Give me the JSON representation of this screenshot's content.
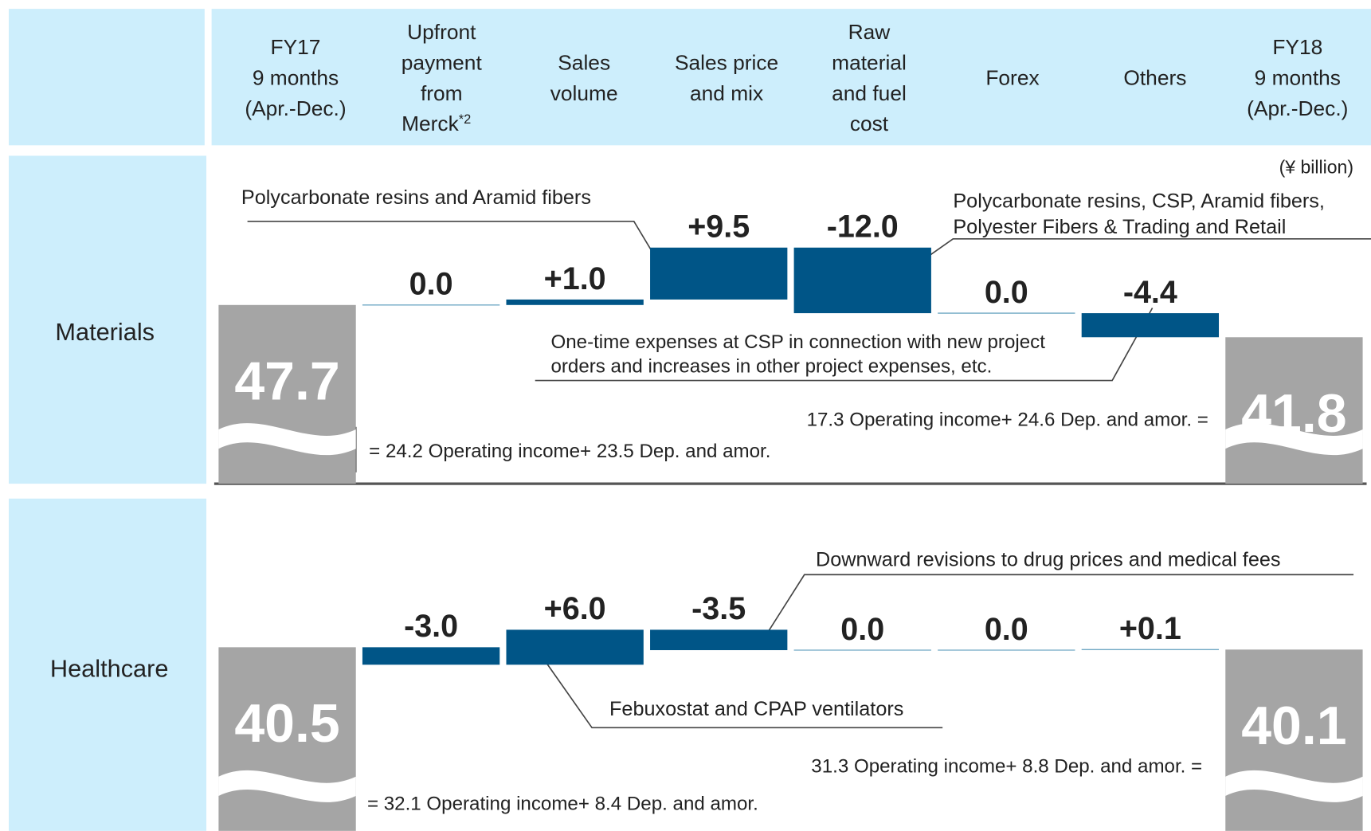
{
  "unit": "(¥ billion)",
  "columns": [
    [
      "FY17",
      "9 months",
      "(Apr.-Dec.)"
    ],
    [
      "Upfront",
      "payment",
      "from",
      "Merck"
    ],
    [
      "Sales",
      "volume"
    ],
    [
      "Sales price",
      "and mix"
    ],
    [
      "Raw",
      "material",
      "and fuel",
      "cost"
    ],
    [
      "Forex"
    ],
    [
      "Others"
    ],
    [
      "FY18",
      "9 months",
      "(Apr.-Dec.)"
    ]
  ],
  "footnote_mark": "*2",
  "chart_data": [
    {
      "type": "waterfall",
      "title": "Materials",
      "values": [
        47.7,
        0.0,
        1.0,
        9.5,
        -12.0,
        0.0,
        -4.4,
        41.8
      ],
      "value_labels": [
        "47.7",
        "0.0",
        "+1.0",
        "+9.5",
        "-12.0",
        "0.0",
        "-4.4",
        "41.8"
      ],
      "ylim": [
        15,
        75
      ],
      "annotations": [
        [
          "Polycarbonate resins and Aramid fibers"
        ],
        [
          "Polycarbonate resins, CSP, Aramid fibers,",
          "Polyester Fibers & Trading and Retail"
        ],
        [
          "One-time expenses at CSP in connection with new project",
          "orders and increases in other project expenses, etc."
        ]
      ],
      "notes": [
        "= 24.2 Operating income+ 23.5 Dep. and amor.",
        "17.3 Operating income+ 24.6 Dep. and amor. ="
      ]
    },
    {
      "type": "waterfall",
      "title": "Healthcare",
      "values": [
        40.5,
        -3.0,
        6.0,
        -3.5,
        0.0,
        0.0,
        0.1,
        40.1
      ],
      "value_labels": [
        "40.5",
        "-3.0",
        "+6.0",
        "-3.5",
        "0.0",
        "0.0",
        "+0.1",
        "40.1"
      ],
      "ylim": [
        9,
        66
      ],
      "annotations": [
        [
          "Downward revisions to drug prices and medical fees"
        ],
        [
          "Febuxostat and CPAP ventilators"
        ]
      ],
      "notes": [
        "= 32.1 Operating income+ 8.4 Dep. and amor.",
        "31.3 Operating income+ 8.8 Dep. and amor. ="
      ]
    }
  ]
}
